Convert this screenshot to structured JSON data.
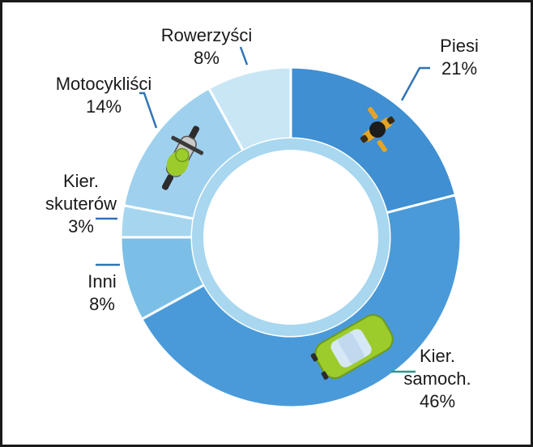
{
  "chart_data": {
    "type": "pie",
    "donut": true,
    "title": "",
    "categories": [
      "Piesi",
      "Kier. samoch.",
      "Inni",
      "Kier. skuterów",
      "Motocykliści",
      "Rowerzyści"
    ],
    "values": [
      21,
      46,
      8,
      3,
      14,
      8
    ],
    "value_labels": [
      "21%",
      "46%",
      "8%",
      "3%",
      "14%",
      "8%"
    ],
    "label_lines": [
      [
        "Piesi",
        "21%"
      ],
      [
        "Kier.",
        "samoch.",
        "46%"
      ],
      [
        "Inni",
        "8%"
      ],
      [
        "Kier.",
        "skuterów",
        "3%"
      ],
      [
        "Motocykliści",
        "14%"
      ],
      [
        "Rowerzyści",
        "8%"
      ]
    ],
    "colors": [
      "#3f8fd2",
      "#4a9ad9",
      "#7cbfe6",
      "#a6d6ef",
      "#9fd1ee",
      "#c9e6f5"
    ],
    "icons": [
      "pedestrian-icon",
      "car-icon",
      "",
      "",
      "motorcycle-icon",
      ""
    ],
    "legend": "none",
    "grid": false
  }
}
